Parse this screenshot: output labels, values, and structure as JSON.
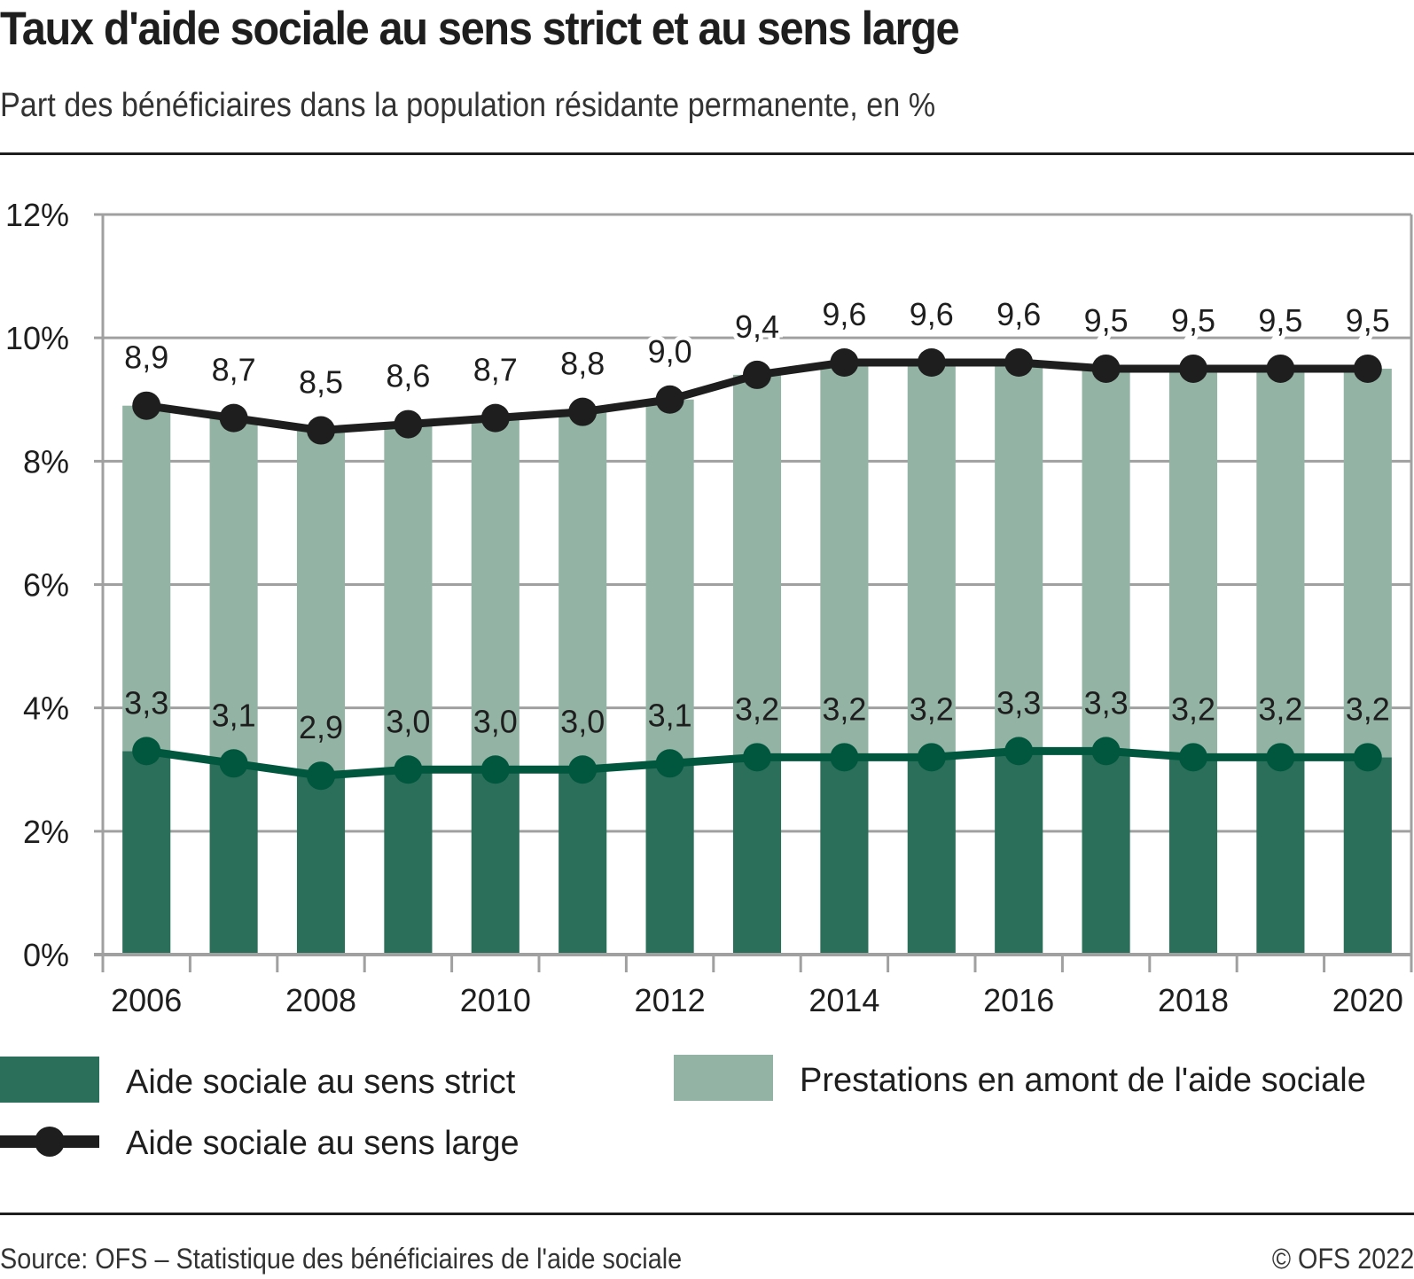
{
  "header": {
    "title": "Taux d'aide sociale au sens strict et au sens large",
    "subtitle": "Part des bénéficiaires dans la population résidante permanente, en %"
  },
  "footer": {
    "source": "Source: OFS – Statistique des bénéficiaires de l'aide sociale",
    "copyright": "© OFS 2022"
  },
  "colors": {
    "strict": "#2b6f5a",
    "amont": "#93b3a4",
    "large_line": "#1e1e1e",
    "strict_line": "#00573d",
    "grid": "#a0a0a0"
  },
  "chart_data": {
    "type": "bar",
    "title": "Taux d'aide sociale au sens strict et au sens large",
    "subtitle": "Part des bénéficiaires dans la population résidante permanente, en %",
    "xlabel": "",
    "ylabel": "",
    "ylim": [
      0,
      12
    ],
    "yticks": [
      0,
      2,
      4,
      6,
      8,
      10,
      12
    ],
    "ytick_labels": [
      "0%",
      "2%",
      "4%",
      "6%",
      "8%",
      "10%",
      "12%"
    ],
    "x": [
      2006,
      2007,
      2008,
      2009,
      2010,
      2011,
      2012,
      2013,
      2014,
      2015,
      2016,
      2017,
      2018,
      2019,
      2020
    ],
    "xtick_labels": [
      "2006",
      "",
      "2008",
      "",
      "2010",
      "",
      "2012",
      "",
      "2014",
      "",
      "2016",
      "",
      "2018",
      "",
      "2020"
    ],
    "grid": true,
    "legend_position": "bottom",
    "series": [
      {
        "name": "Aide sociale au sens strict",
        "kind": "bar-stacked",
        "values": [
          3.3,
          3.1,
          2.9,
          3.0,
          3.0,
          3.0,
          3.1,
          3.2,
          3.2,
          3.2,
          3.3,
          3.3,
          3.2,
          3.2,
          3.2
        ],
        "labels": [
          "3,3",
          "3,1",
          "2,9",
          "3,0",
          "3,0",
          "3,0",
          "3,1",
          "3,2",
          "3,2",
          "3,2",
          "3,3",
          "3,3",
          "3,2",
          "3,2",
          "3,2"
        ]
      },
      {
        "name": "Prestations en amont de l'aide sociale",
        "kind": "bar-stacked",
        "values": [
          5.6,
          5.6,
          5.6,
          5.6,
          5.7,
          5.8,
          5.9,
          6.2,
          6.4,
          6.4,
          6.3,
          6.2,
          6.3,
          6.3,
          6.3
        ]
      },
      {
        "name": "Aide sociale au sens large",
        "kind": "line",
        "values": [
          8.9,
          8.7,
          8.5,
          8.6,
          8.7,
          8.8,
          9.0,
          9.4,
          9.6,
          9.6,
          9.6,
          9.5,
          9.5,
          9.5,
          9.5
        ],
        "labels": [
          "8,9",
          "8,7",
          "8,5",
          "8,6",
          "8,7",
          "8,8",
          "9,0",
          "9,4",
          "9,6",
          "9,6",
          "9,6",
          "9,5",
          "9,5",
          "9,5",
          "9,5"
        ]
      }
    ],
    "legend": [
      {
        "label": "Aide sociale au sens strict",
        "symbol": "square-dark"
      },
      {
        "label": "Prestations en amont de l'aide sociale",
        "symbol": "square-light"
      },
      {
        "label": "Aide sociale au sens large",
        "symbol": "line-marker"
      }
    ]
  }
}
